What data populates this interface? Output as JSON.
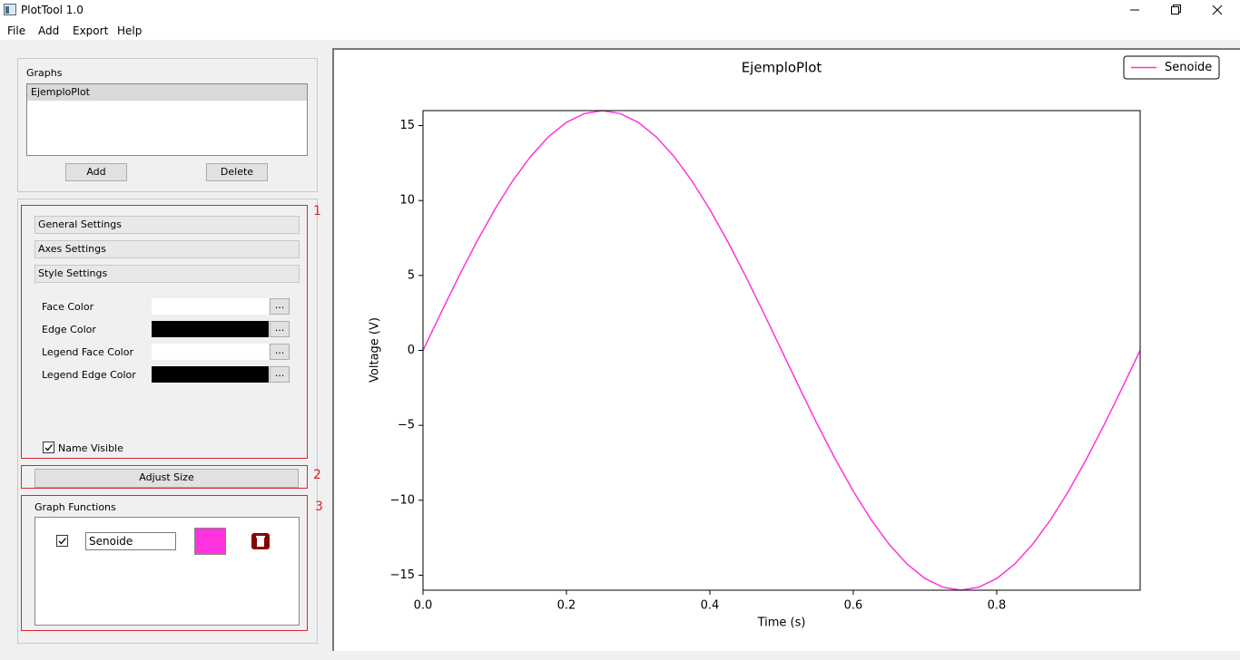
{
  "window": {
    "title": "PlotTool 1.0"
  },
  "menu": [
    "File",
    "Add",
    "Export",
    "Help"
  ],
  "graphs_panel": {
    "title": "Graphs",
    "items": [
      "EjemploPlot"
    ],
    "buttons": [
      "Add",
      "Delete"
    ]
  },
  "settings": {
    "sections": [
      "General Settings",
      "Axes Settings",
      "Style Settings"
    ],
    "colors": [
      {
        "label": "Face Color",
        "color": "#ffffff",
        "button": "..."
      },
      {
        "label": "Edge Color",
        "color": "#000000",
        "button": "..."
      },
      {
        "label": "Legend Face Color",
        "color": "#ffffff",
        "button": "..."
      },
      {
        "label": "Legend Edge Color",
        "color": "#000000",
        "button": "..."
      }
    ],
    "name_visible": {
      "label": "Name Visible",
      "checked": true
    }
  },
  "adjust_button": "Adjust Size",
  "functions": {
    "title": "Graph Functions",
    "items": [
      {
        "name": "Senoide",
        "checked": true,
        "color": "#ff33dd"
      }
    ]
  },
  "annotations": [
    "1",
    "2",
    "3"
  ],
  "chart_data": {
    "type": "line",
    "title": "EjemploPlot",
    "xlabel": "Time (s)",
    "ylabel": "Voltage (V)",
    "x": [
      0,
      0.025,
      0.05,
      0.075,
      0.1,
      0.125,
      0.15,
      0.175,
      0.2,
      0.225,
      0.25,
      0.275,
      0.3,
      0.325,
      0.35,
      0.375,
      0.4,
      0.425,
      0.45,
      0.475,
      0.5,
      0.525,
      0.55,
      0.575,
      0.6,
      0.625,
      0.65,
      0.675,
      0.7,
      0.725,
      0.75,
      0.775,
      0.8,
      0.825,
      0.85,
      0.875,
      0.9,
      0.925,
      0.95,
      0.975,
      1
    ],
    "series": [
      {
        "name": "Senoide",
        "color": "#ff33dd",
        "values": [
          0,
          2.5,
          4.94,
          7.26,
          9.4,
          11.31,
          12.94,
          14.26,
          15.22,
          15.8,
          16,
          15.8,
          15.22,
          14.26,
          12.94,
          11.31,
          9.4,
          7.26,
          4.94,
          2.5,
          0,
          -2.5,
          -4.94,
          -7.26,
          -9.4,
          -11.31,
          -12.94,
          -14.26,
          -15.22,
          -15.8,
          -16,
          -15.8,
          -15.22,
          -14.26,
          -12.94,
          -11.31,
          -9.4,
          -7.26,
          -4.94,
          -2.5,
          0
        ]
      }
    ],
    "xlim": [
      0,
      1
    ],
    "ylim": [
      -16,
      16
    ],
    "xticks": [
      {
        "value": 0,
        "label": "0.0"
      },
      0.2,
      0.4,
      0.6,
      0.8
    ],
    "yticks": [
      {
        "value": -15,
        "label": "−15"
      },
      {
        "value": -10,
        "label": "−10"
      },
      {
        "value": -5,
        "label": "−5"
      },
      0,
      5,
      10,
      15
    ],
    "legend": "upper right"
  }
}
